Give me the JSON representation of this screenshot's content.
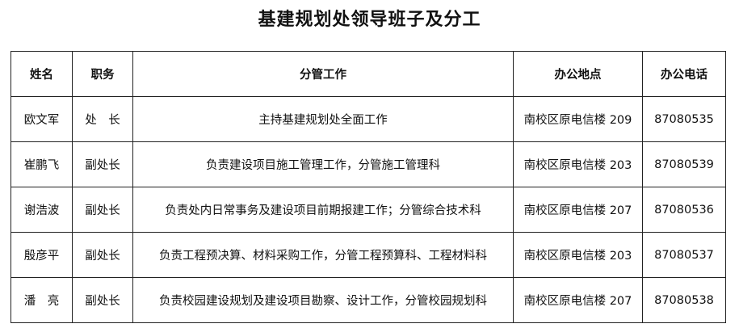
{
  "title": "基建规划处领导班子及分工",
  "table": {
    "headers": [
      "姓名",
      "职务",
      "分管工作",
      "办公地点",
      "办公电话"
    ],
    "rows": [
      [
        "欧文军",
        "处　长",
        "主持基建规划处全面工作",
        "南校区原电信楼 209",
        "87080535"
      ],
      [
        "崔鹏飞",
        "副处长",
        "负责建设项目施工管理工作，分管施工管理科",
        "南校区原电信楼 203",
        "87080539"
      ],
      [
        "谢浩波",
        "副处长",
        "负责处内日常事务及建设项目前期报建工作；分管综合技术科",
        "南校区原电信楼 207",
        "87080536"
      ],
      [
        "殷彦平",
        "副处长",
        "负责工程预决算、材料采购工作，分管工程预算科、工程材料科",
        "南校区原电信楼 203",
        "87080537"
      ],
      [
        "潘　亮",
        "副处长",
        "负责校园建设规划及建设项目勘察、设计工作，分管校园规划科",
        "南校区原电信楼 207",
        "87080538"
      ]
    ]
  }
}
